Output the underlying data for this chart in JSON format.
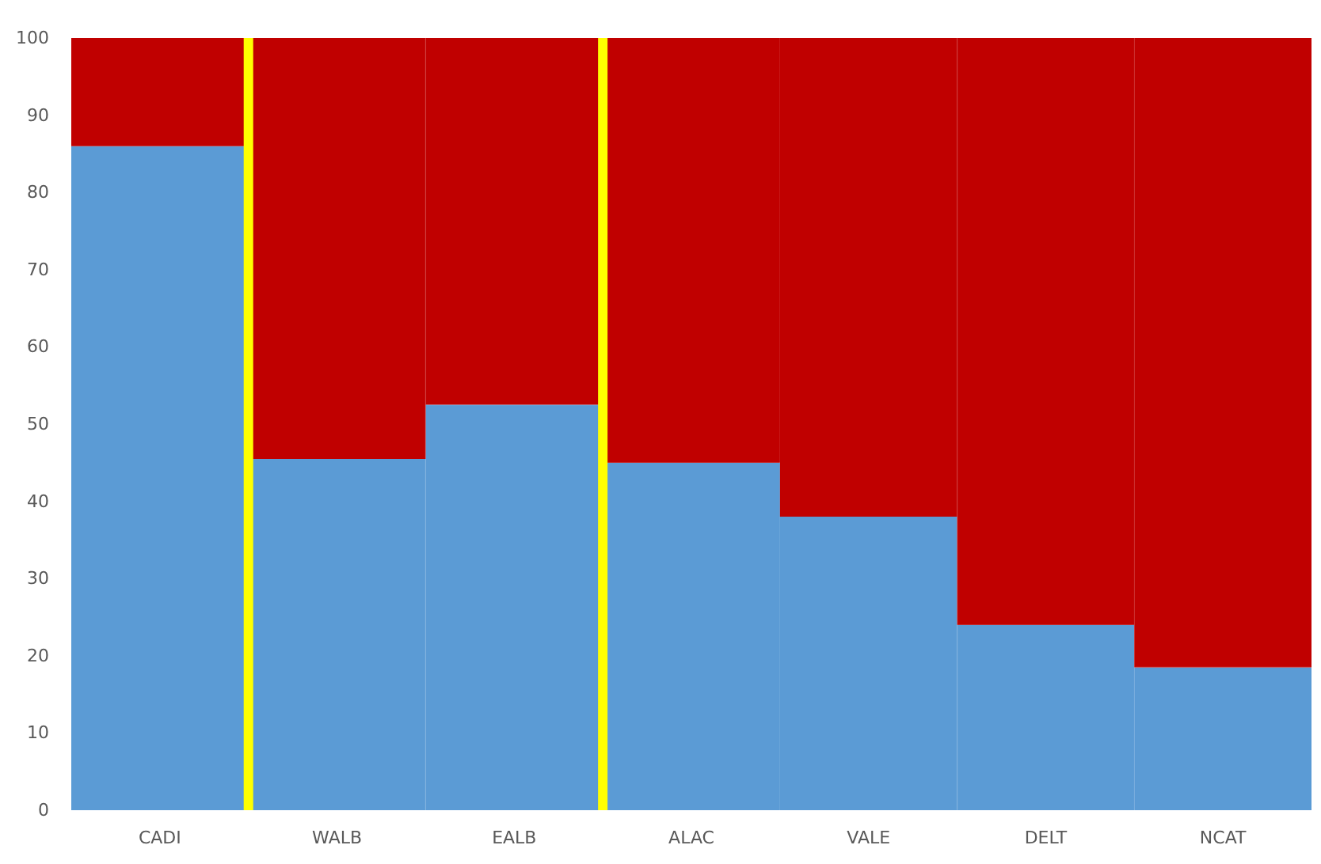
{
  "chart_data": {
    "type": "bar",
    "stacked": true,
    "categories": [
      "CADI",
      "WALB",
      "EALB",
      "ALAC",
      "VALE",
      "DELT",
      "NCAT"
    ],
    "series": [
      {
        "color": "#5b9bd5",
        "values": [
          86,
          45.5,
          52.5,
          45,
          38,
          24,
          18.5
        ]
      },
      {
        "color": "#c00000",
        "values": [
          14,
          54.5,
          47.5,
          55,
          62,
          76,
          81.5
        ]
      }
    ],
    "ylim": [
      0,
      100
    ],
    "yticks": [
      0,
      10,
      20,
      30,
      40,
      50,
      60,
      70,
      80,
      90,
      100
    ],
    "grid": false
  }
}
